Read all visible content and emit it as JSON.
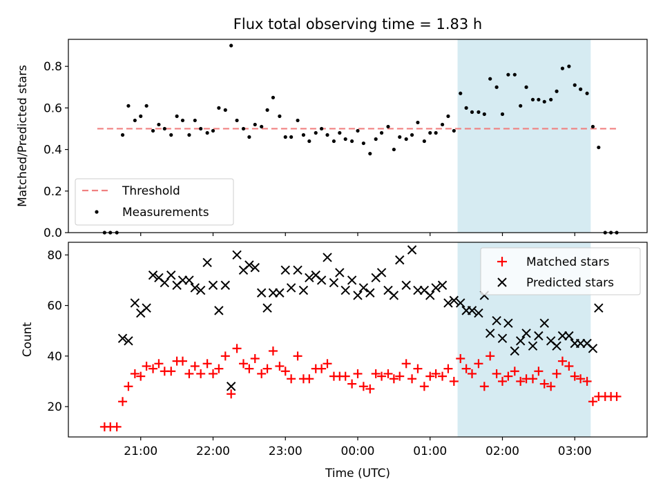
{
  "chart_data": [
    {
      "type": "scatter",
      "title": "Flux total observing time = 1.83 h",
      "xlabel": "",
      "ylabel": "Matched/Predicted stars",
      "ylim": [
        0,
        0.93
      ],
      "yticks": [
        0.0,
        0.2,
        0.4,
        0.6,
        0.8
      ],
      "ytick_labels": [
        "0.0",
        "0.2",
        "0.4",
        "0.6",
        "0.8"
      ],
      "highlight_span": {
        "x0": 1.38,
        "x1": 3.22,
        "color": "#add8e6"
      },
      "threshold": {
        "name": "Threshold",
        "y": 0.5,
        "x0": 20.4,
        "x1": 27.6,
        "color": "#f08080"
      },
      "legend": {
        "placement": "lower-left",
        "entries": [
          "Threshold",
          "Measurements"
        ]
      },
      "series": [
        {
          "name": "Measurements",
          "color": "#000000",
          "x": [
            20.5,
            20.58,
            20.67,
            20.75,
            20.83,
            20.92,
            21.0,
            21.08,
            21.17,
            21.25,
            21.33,
            21.42,
            21.5,
            21.58,
            21.67,
            21.75,
            21.83,
            21.92,
            22.0,
            22.08,
            22.17,
            22.25,
            22.33,
            22.42,
            22.5,
            22.58,
            22.67,
            22.75,
            22.83,
            22.92,
            23.0,
            23.08,
            23.17,
            23.25,
            23.33,
            23.42,
            23.5,
            23.58,
            23.67,
            23.75,
            23.83,
            23.92,
            24.0,
            24.08,
            24.17,
            24.25,
            24.33,
            24.42,
            24.5,
            24.58,
            24.67,
            24.75,
            24.83,
            24.92,
            25.0,
            25.08,
            25.17,
            25.25,
            25.33,
            25.42,
            25.5,
            25.58,
            25.67,
            25.75,
            25.83,
            25.92,
            26.0,
            26.08,
            26.17,
            26.25,
            26.33,
            26.42,
            26.5,
            26.58,
            26.67,
            26.75,
            26.83,
            26.92,
            27.0,
            27.08,
            27.17,
            27.25,
            27.33,
            27.42,
            27.5,
            27.58
          ],
          "y": [
            0.0,
            0.0,
            0.0,
            0.47,
            0.61,
            0.54,
            0.56,
            0.61,
            0.49,
            0.52,
            0.5,
            0.47,
            0.56,
            0.54,
            0.47,
            0.54,
            0.5,
            0.48,
            0.49,
            0.6,
            0.59,
            0.9,
            0.54,
            0.5,
            0.46,
            0.52,
            0.51,
            0.59,
            0.65,
            0.56,
            0.46,
            0.46,
            0.54,
            0.47,
            0.44,
            0.48,
            0.5,
            0.47,
            0.44,
            0.48,
            0.45,
            0.44,
            0.49,
            0.43,
            0.38,
            0.45,
            0.48,
            0.51,
            0.4,
            0.46,
            0.45,
            0.47,
            0.53,
            0.44,
            0.48,
            0.48,
            0.52,
            0.56,
            0.49,
            0.67,
            0.6,
            0.58,
            0.58,
            0.57,
            0.74,
            0.7,
            0.57,
            0.76,
            0.76,
            0.61,
            0.7,
            0.64,
            0.64,
            0.63,
            0.64,
            0.68,
            0.79,
            0.8,
            0.71,
            0.69,
            0.67,
            0.51,
            0.41,
            0.0,
            0.0,
            0.0
          ]
        }
      ]
    },
    {
      "type": "scatter",
      "title": "",
      "xlabel": "Time (UTC)",
      "ylabel": "Count",
      "xlim": [
        20.0,
        28.0
      ],
      "ylim": [
        8,
        85
      ],
      "yticks": [
        20,
        40,
        60,
        80
      ],
      "ytick_labels": [
        "20",
        "40",
        "60",
        "80"
      ],
      "xticks": [
        21,
        22,
        23,
        24,
        25,
        26,
        27
      ],
      "xtick_labels": [
        "21:00",
        "22:00",
        "23:00",
        "00:00",
        "01:00",
        "02:00",
        "03:00"
      ],
      "highlight_span": {
        "x0": 1.38,
        "x1": 3.22,
        "color": "#add8e6"
      },
      "legend": {
        "placement": "top-right",
        "entries": [
          "Matched stars",
          "Predicted stars"
        ]
      },
      "series": [
        {
          "name": "Matched stars",
          "marker": "plus",
          "color": "#ff0000",
          "x": [
            20.5,
            20.58,
            20.67,
            20.75,
            20.83,
            20.92,
            21.0,
            21.08,
            21.17,
            21.25,
            21.33,
            21.42,
            21.5,
            21.58,
            21.67,
            21.75,
            21.83,
            21.92,
            22.0,
            22.08,
            22.17,
            22.25,
            22.33,
            22.42,
            22.5,
            22.58,
            22.67,
            22.75,
            22.83,
            22.92,
            23.0,
            23.08,
            23.17,
            23.25,
            23.33,
            23.42,
            23.5,
            23.58,
            23.67,
            23.75,
            23.83,
            23.92,
            24.0,
            24.08,
            24.17,
            24.25,
            24.33,
            24.42,
            24.5,
            24.58,
            24.67,
            24.75,
            24.83,
            24.92,
            25.0,
            25.08,
            25.17,
            25.25,
            25.33,
            25.42,
            25.5,
            25.58,
            25.67,
            25.75,
            25.83,
            25.92,
            26.0,
            26.08,
            26.17,
            26.25,
            26.33,
            26.42,
            26.5,
            26.58,
            26.67,
            26.75,
            26.83,
            26.92,
            27.0,
            27.08,
            27.17,
            27.25,
            27.33,
            27.42,
            27.5,
            27.58
          ],
          "y": [
            12,
            12,
            12,
            22,
            28,
            33,
            32,
            36,
            35,
            37,
            34,
            34,
            38,
            38,
            33,
            36,
            33,
            37,
            33,
            35,
            40,
            25,
            43,
            37,
            35,
            39,
            33,
            35,
            42,
            36,
            34,
            31,
            40,
            31,
            31,
            35,
            35,
            37,
            32,
            32,
            32,
            29,
            33,
            28,
            27,
            33,
            32,
            33,
            31,
            32,
            37,
            31,
            35,
            28,
            32,
            33,
            32,
            35,
            30,
            39,
            35,
            33,
            37,
            28,
            40,
            33,
            30,
            32,
            34,
            30,
            31,
            31,
            34,
            29,
            28,
            33,
            38,
            36,
            32,
            31,
            30,
            22,
            24,
            24,
            24,
            24
          ]
        },
        {
          "name": "Predicted stars",
          "marker": "x",
          "color": "#000000",
          "x": [
            20.75,
            20.83,
            20.92,
            21.0,
            21.08,
            21.17,
            21.25,
            21.33,
            21.42,
            21.5,
            21.58,
            21.67,
            21.75,
            21.83,
            21.92,
            22.0,
            22.08,
            22.17,
            22.25,
            22.33,
            22.42,
            22.5,
            22.58,
            22.67,
            22.75,
            22.83,
            22.92,
            23.0,
            23.08,
            23.17,
            23.25,
            23.33,
            23.42,
            23.5,
            23.58,
            23.67,
            23.75,
            23.83,
            23.92,
            24.0,
            24.08,
            24.17,
            24.25,
            24.33,
            24.42,
            24.5,
            24.58,
            24.67,
            24.75,
            24.83,
            24.92,
            25.0,
            25.08,
            25.17,
            25.25,
            25.33,
            25.42,
            25.5,
            25.58,
            25.67,
            25.75,
            25.83,
            25.92,
            26.0,
            26.08,
            26.17,
            26.25,
            26.33,
            26.42,
            26.5,
            26.58,
            26.67,
            26.75,
            26.83,
            26.92,
            27.0,
            27.08,
            27.17,
            27.25,
            27.33
          ],
          "y": [
            47,
            46,
            61,
            57,
            59,
            72,
            71,
            69,
            72,
            68,
            70,
            70,
            67,
            66,
            77,
            68,
            58,
            68,
            28,
            80,
            74,
            76,
            75,
            65,
            59,
            65,
            65,
            74,
            67,
            74,
            66,
            71,
            72,
            70,
            79,
            69,
            73,
            66,
            70,
            64,
            67,
            65,
            71,
            73,
            66,
            64,
            78,
            68,
            82,
            66,
            66,
            64,
            67,
            68,
            61,
            62,
            61,
            58,
            58,
            57,
            64,
            49,
            54,
            47,
            53,
            42,
            46,
            49,
            44,
            48,
            53,
            46,
            44,
            48,
            48,
            45,
            45,
            45,
            43,
            59
          ]
        }
      ]
    }
  ]
}
